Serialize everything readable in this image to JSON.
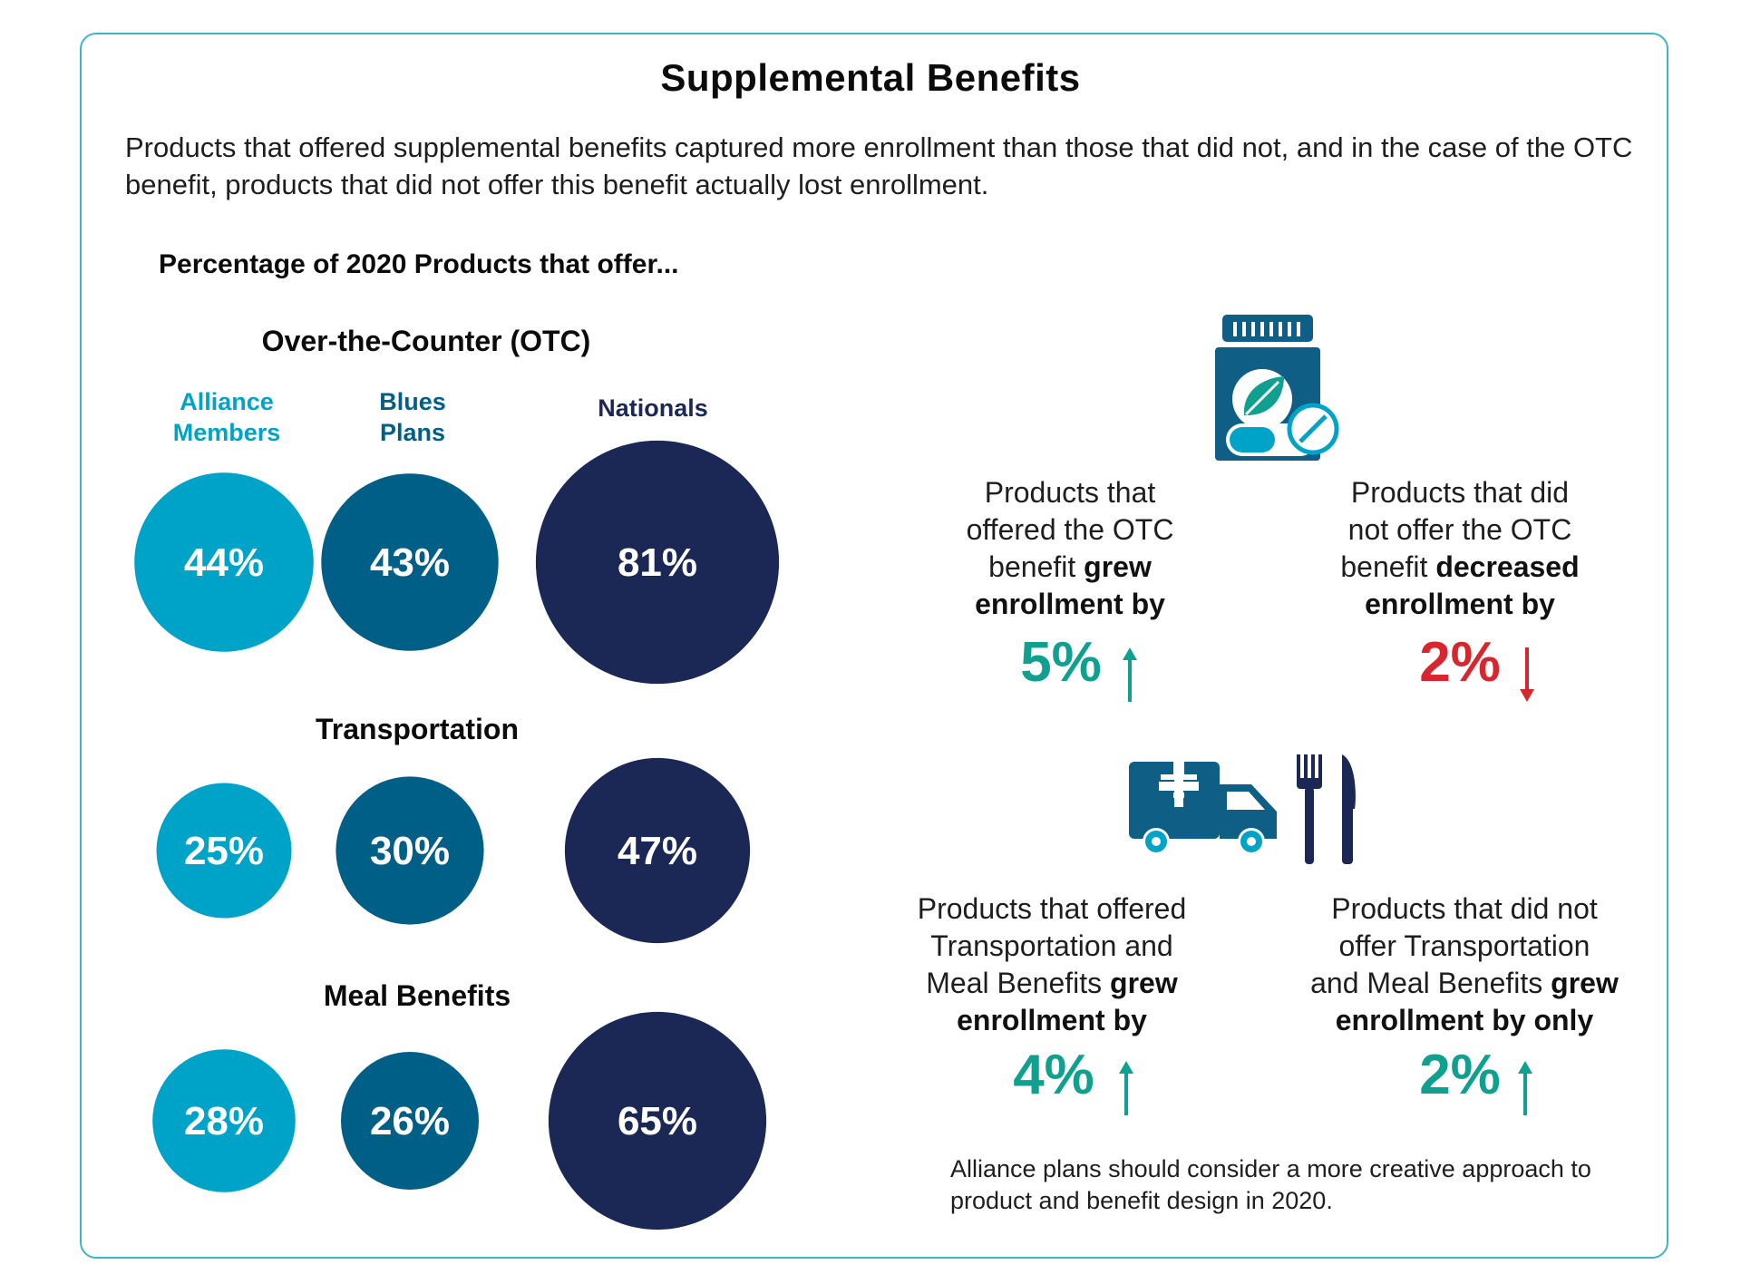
{
  "title": "Supplemental Benefits",
  "subtitle": "Products that offered supplemental benefits captured more enrollment than those that did not, and in the case of the OTC benefit, products that did not offer this benefit actually lost enrollment.",
  "section_heading": "Percentage of 2020 Products that offer...",
  "colors": {
    "alliance": "#00a3c8",
    "blues": "#005f86",
    "nationals": "#1b2856",
    "teal": "#10a08f",
    "red": "#d7262e",
    "frame": "#3fb3c7"
  },
  "chart_data": {
    "type": "bubble",
    "series": [
      {
        "name": "Alliance Members",
        "label_line1": "Alliance",
        "label_line2": "Members"
      },
      {
        "name": "Blues Plans",
        "label_line1": "Blues",
        "label_line2": "Plans"
      },
      {
        "name": "Nationals",
        "label_line1": "Nationals",
        "label_line2": ""
      }
    ],
    "groups": [
      {
        "name": "Over-the-Counter (OTC)",
        "values": [
          44,
          43,
          81
        ],
        "labels": [
          "44%",
          "43%",
          "81%"
        ]
      },
      {
        "name": "Transportation",
        "values": [
          25,
          30,
          47
        ],
        "labels": [
          "25%",
          "30%",
          "47%"
        ]
      },
      {
        "name": "Meal Benefits",
        "values": [
          28,
          26,
          65
        ],
        "labels": [
          "28%",
          "26%",
          "65%"
        ]
      }
    ]
  },
  "stats": {
    "otc_offered": {
      "line1": "Products that",
      "line2": "offered the OTC",
      "line3a": "benefit ",
      "line3b": "grew",
      "line4": "enrollment by",
      "value": "5%",
      "direction": "up"
    },
    "otc_not_offered": {
      "line1": "Products that did",
      "line2": "not offer the OTC",
      "line3a": "benefit ",
      "line3b": "decreased",
      "line4": "enrollment by",
      "value": "2%",
      "direction": "down"
    },
    "tm_offered": {
      "line1": "Products that offered",
      "line2": "Transportation and",
      "line3a": "Meal Benefits ",
      "line3b": "grew",
      "line4": "enrollment by",
      "value": "4%",
      "direction": "up"
    },
    "tm_not_offered": {
      "line1": "Products that did not",
      "line2": "offer Transportation",
      "line3a": "and Meal Benefits ",
      "line3b": "grew",
      "line4": "enrollment by only",
      "value": "2%",
      "direction": "up"
    }
  },
  "icons": [
    "pill-bottle-leaf-icon",
    "ambulance-icon",
    "fork-knife-icon"
  ],
  "note": "Alliance plans should consider a more creative approach to product and benefit design in 2020."
}
